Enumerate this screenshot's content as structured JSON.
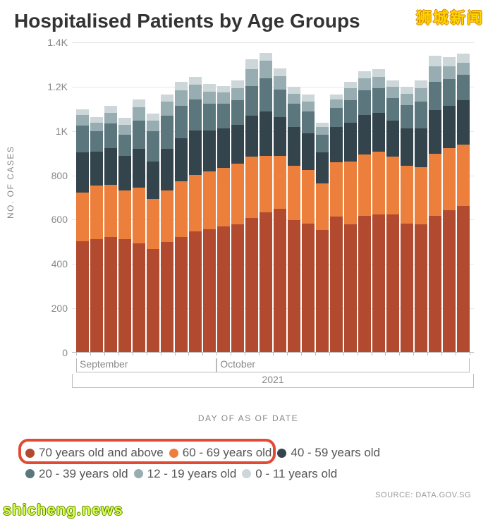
{
  "title": "Hospitalised Patients by Age Groups",
  "watermark_top": "狮城新闻",
  "watermark_bottom": "shicheng.news",
  "source_label": "SOURCE: DATA.GOV.SG",
  "yaxis": {
    "label": "NO. OF CASES",
    "ticks": [
      0,
      200,
      400,
      600,
      800,
      "1K",
      "1.2K",
      "1.4K"
    ],
    "tick_values": [
      0,
      200,
      400,
      600,
      800,
      1000,
      1200,
      1400
    ],
    "max": 1400
  },
  "xaxis": {
    "label": "DAY OF AS OF DATE",
    "months": [
      {
        "label": "September",
        "start": 0,
        "end": 10
      },
      {
        "label": "October",
        "start": 10,
        "end": 28
      }
    ],
    "year": "2021",
    "n_days": 28
  },
  "series": [
    {
      "key": "70+",
      "label": "70 years old and above",
      "color": "#b14a2f"
    },
    {
      "key": "60-69",
      "label": "60 - 69 years old",
      "color": "#ec7f3b"
    },
    {
      "key": "40-59",
      "label": "40 - 59 years old",
      "color": "#33444c"
    },
    {
      "key": "20-39",
      "label": "20 - 39 years old",
      "color": "#5c767d"
    },
    {
      "key": "12-19",
      "label": "12 - 19 years old",
      "color": "#98adb1"
    },
    {
      "key": "0-11",
      "label": "0 - 11 years old",
      "color": "#cdd7da"
    }
  ],
  "callout_series_indices": [
    0,
    1
  ],
  "data": [
    {
      "70+": 500,
      "60-69": 220,
      "40-59": 180,
      "20-39": 120,
      "12-19": 50,
      "0-11": 25
    },
    {
      "70+": 510,
      "60-69": 240,
      "40-59": 155,
      "20-39": 90,
      "12-19": 40,
      "0-11": 25
    },
    {
      "70+": 520,
      "60-69": 235,
      "40-59": 165,
      "20-39": 110,
      "12-19": 50,
      "0-11": 30
    },
    {
      "70+": 510,
      "60-69": 220,
      "40-59": 155,
      "20-39": 95,
      "12-19": 45,
      "0-11": 30
    },
    {
      "70+": 490,
      "60-69": 250,
      "40-59": 175,
      "20-39": 130,
      "12-19": 60,
      "0-11": 35
    },
    {
      "70+": 465,
      "60-69": 225,
      "40-59": 170,
      "20-39": 135,
      "12-19": 50,
      "0-11": 30
    },
    {
      "70+": 495,
      "60-69": 235,
      "40-59": 185,
      "20-39": 150,
      "12-19": 65,
      "0-11": 30
    },
    {
      "70+": 520,
      "60-69": 250,
      "40-59": 195,
      "20-39": 145,
      "12-19": 70,
      "0-11": 40
    },
    {
      "70+": 545,
      "60-69": 255,
      "40-59": 200,
      "20-39": 140,
      "12-19": 65,
      "0-11": 35
    },
    {
      "70+": 555,
      "60-69": 260,
      "40-59": 185,
      "20-39": 120,
      "12-19": 55,
      "0-11": 35
    },
    {
      "70+": 565,
      "60-69": 265,
      "40-59": 180,
      "20-39": 110,
      "12-19": 50,
      "0-11": 30
    },
    {
      "70+": 575,
      "60-69": 275,
      "40-59": 175,
      "20-39": 110,
      "12-19": 55,
      "0-11": 35
    },
    {
      "70+": 605,
      "60-69": 275,
      "40-59": 185,
      "20-39": 135,
      "12-19": 75,
      "0-11": 45
    },
    {
      "70+": 630,
      "60-69": 255,
      "40-59": 200,
      "20-39": 150,
      "12-19": 80,
      "0-11": 35
    },
    {
      "70+": 645,
      "60-69": 240,
      "40-59": 175,
      "20-39": 125,
      "12-19": 60,
      "0-11": 35
    },
    {
      "70+": 595,
      "60-69": 245,
      "40-59": 175,
      "20-39": 105,
      "12-19": 45,
      "0-11": 30
    },
    {
      "70+": 580,
      "60-69": 240,
      "40-59": 165,
      "20-39": 100,
      "12-19": 45,
      "0-11": 30
    },
    {
      "70+": 550,
      "60-69": 210,
      "40-59": 140,
      "20-39": 80,
      "12-19": 35,
      "0-11": 20
    },
    {
      "70+": 610,
      "60-69": 245,
      "40-59": 160,
      "20-39": 85,
      "12-19": 40,
      "0-11": 20
    },
    {
      "70+": 575,
      "60-69": 285,
      "40-59": 175,
      "20-39": 100,
      "12-19": 55,
      "0-11": 30
    },
    {
      "70+": 615,
      "60-69": 275,
      "40-59": 180,
      "20-39": 110,
      "12-19": 55,
      "0-11": 30
    },
    {
      "70+": 620,
      "60-69": 285,
      "40-59": 175,
      "20-39": 110,
      "12-19": 50,
      "0-11": 35
    },
    {
      "70+": 620,
      "60-69": 260,
      "40-59": 165,
      "20-39": 100,
      "12-19": 50,
      "0-11": 30
    },
    {
      "70+": 580,
      "60-69": 260,
      "40-59": 170,
      "20-39": 105,
      "12-19": 50,
      "0-11": 30
    },
    {
      "70+": 575,
      "60-69": 260,
      "40-59": 175,
      "20-39": 120,
      "12-19": 60,
      "0-11": 35
    },
    {
      "70+": 615,
      "60-69": 280,
      "40-59": 195,
      "20-39": 130,
      "12-19": 70,
      "0-11": 45
    },
    {
      "70+": 640,
      "60-69": 280,
      "40-59": 190,
      "20-39": 120,
      "12-19": 60,
      "0-11": 40
    },
    {
      "70+": 660,
      "60-69": 275,
      "40-59": 200,
      "20-39": 115,
      "12-19": 55,
      "0-11": 40
    }
  ],
  "style": {
    "title_fontsize": 28,
    "axis_label_fontsize": 12,
    "tick_fontsize": 14,
    "legend_fontsize": 17,
    "background": "#ffffff",
    "grid_color": "#e6e6e6",
    "callout_color": "#e24a33",
    "text_color": "#555555"
  }
}
